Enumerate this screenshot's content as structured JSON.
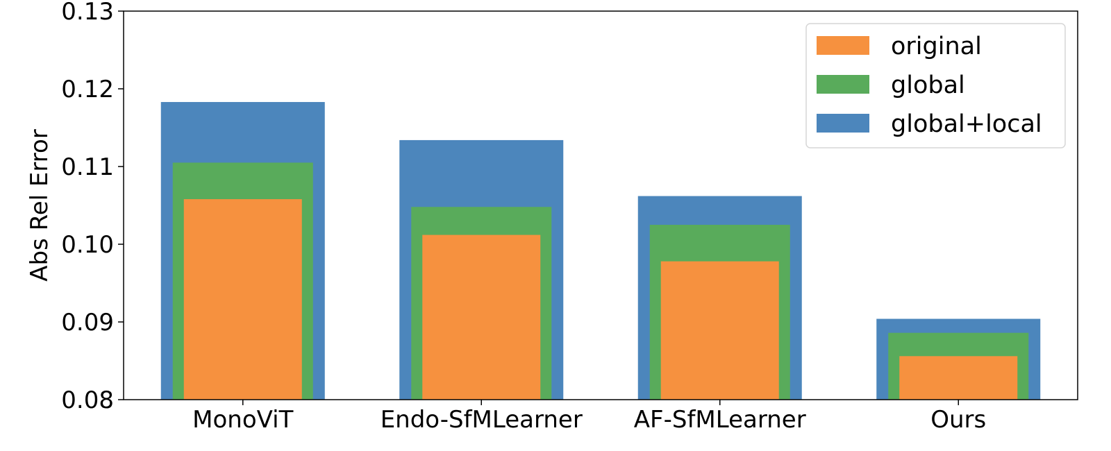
{
  "chart_data": {
    "type": "bar",
    "ylabel": "Abs Rel Error",
    "xlabel": "",
    "ylim": [
      0.08,
      0.13
    ],
    "yticks": [
      "0.08",
      "0.09",
      "0.10",
      "0.11",
      "0.12",
      "0.13"
    ],
    "categories": [
      "MonoViT",
      "Endo-SfMLearner",
      "AF-SfMLearner",
      "Ours"
    ],
    "series": [
      {
        "name": "global+local",
        "color": "#4C86BC",
        "values": [
          0.1183,
          0.1134,
          0.1062,
          0.0904
        ]
      },
      {
        "name": "global",
        "color": "#59AB5B",
        "values": [
          0.1105,
          0.1048,
          0.1025,
          0.0886
        ]
      },
      {
        "name": "original",
        "color": "#F6913F",
        "values": [
          0.1058,
          0.1012,
          0.0978,
          0.0856
        ]
      }
    ],
    "legend": {
      "position": "top-right",
      "entries": [
        "original",
        "global",
        "global+local"
      ]
    },
    "grid": false
  }
}
